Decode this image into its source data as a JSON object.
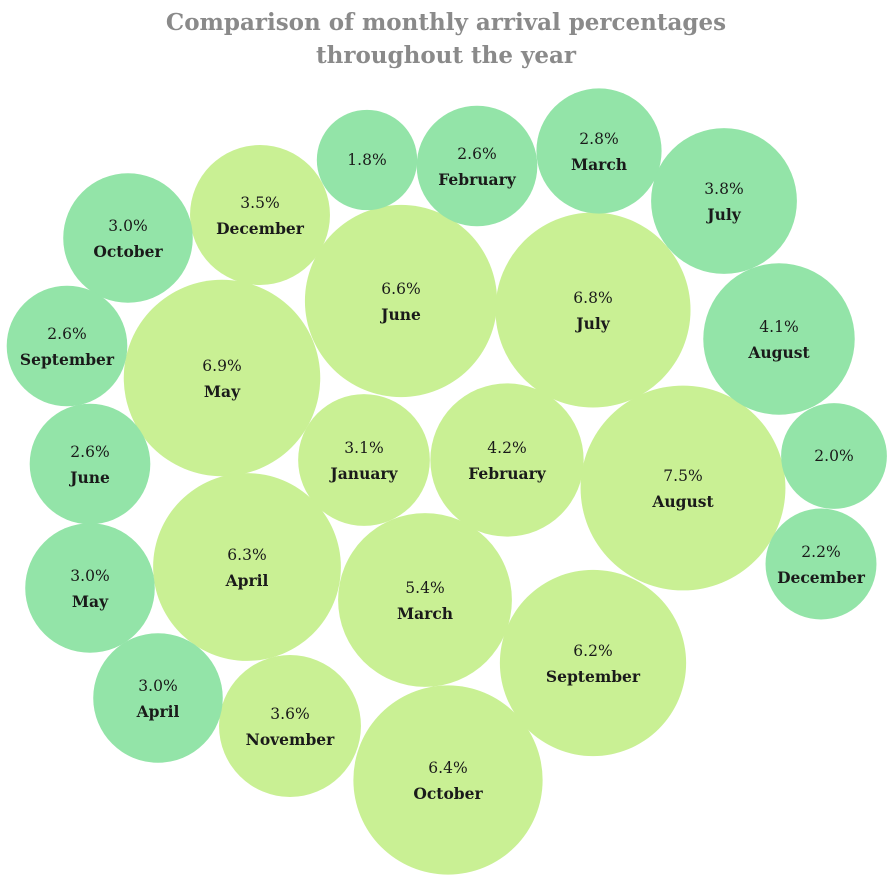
{
  "chart_data": {
    "type": "bubble",
    "title_lines": [
      "Comparison of monthly arrival percentages",
      "throughout the year"
    ],
    "value_suffix": "%",
    "colors": {
      "large_series": "#c9f094",
      "small_series": "#93e4a8"
    },
    "series": [
      {
        "color_key": "large_series",
        "points": [
          {
            "label": "May",
            "value": 6.9
          },
          {
            "label": "June",
            "value": 6.6
          },
          {
            "label": "July",
            "value": 6.8
          },
          {
            "label": "December",
            "value": 3.5
          },
          {
            "label": "January",
            "value": 3.1
          },
          {
            "label": "February",
            "value": 4.2
          },
          {
            "label": "August",
            "value": 7.5
          },
          {
            "label": "April",
            "value": 6.3
          },
          {
            "label": "March",
            "value": 5.4
          },
          {
            "label": "September",
            "value": 6.2
          },
          {
            "label": "November",
            "value": 3.6
          },
          {
            "label": "October",
            "value": 6.4
          }
        ]
      },
      {
        "color_key": "small_series",
        "points": [
          {
            "label": "",
            "value": 1.8
          },
          {
            "label": "February",
            "value": 2.6
          },
          {
            "label": "March",
            "value": 2.8
          },
          {
            "label": "July",
            "value": 3.8
          },
          {
            "label": "October",
            "value": 3.0
          },
          {
            "label": "September",
            "value": 2.6
          },
          {
            "label": "August",
            "value": 4.1
          },
          {
            "label": "June",
            "value": 2.6
          },
          {
            "label": "",
            "value": 2.0
          },
          {
            "label": "May",
            "value": 3.0
          },
          {
            "label": "December",
            "value": 2.2
          },
          {
            "label": "April",
            "value": 3.0
          }
        ]
      }
    ]
  }
}
